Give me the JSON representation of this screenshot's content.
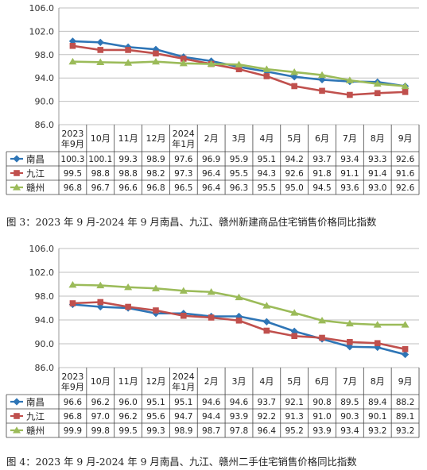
{
  "charts": [
    {
      "caption": "图 3：2023 年 9 月-2024 年 9 月南昌、九江、赣州新建商品住宅销售价格同比指数",
      "chart_data": {
        "type": "line",
        "categories": [
          [
            "2023",
            "年9月"
          ],
          [
            "10月"
          ],
          [
            "11月"
          ],
          [
            "12月"
          ],
          [
            "2024",
            "年1月"
          ],
          [
            "2月"
          ],
          [
            "3月"
          ],
          [
            "4月"
          ],
          [
            "5月"
          ],
          [
            "6月"
          ],
          [
            "7月"
          ],
          [
            "8月"
          ],
          [
            "9月"
          ]
        ],
        "ylim": [
          86.0,
          106.0
        ],
        "yticks": [
          "86.0",
          "90.0",
          "94.0",
          "98.0",
          "102.0",
          "106.0"
        ],
        "series": [
          {
            "name": "南昌",
            "color": "#2e75b6",
            "marker": "diamond",
            "values": [
              100.3,
              100.1,
              99.3,
              98.9,
              97.6,
              96.9,
              95.9,
              95.1,
              94.2,
              93.7,
              93.4,
              93.3,
              92.6
            ],
            "labels": [
              "100.3",
              "100.1",
              "99.3",
              "98.9",
              "97.6",
              "96.9",
              "95.9",
              "95.1",
              "94.2",
              "93.7",
              "93.4",
              "93.3",
              "92.6"
            ]
          },
          {
            "name": "九江",
            "color": "#c0504d",
            "marker": "square",
            "values": [
              99.5,
              98.8,
              98.8,
              98.2,
              97.3,
              96.4,
              95.5,
              94.3,
              92.6,
              91.8,
              91.1,
              91.4,
              91.6
            ],
            "labels": [
              "99.5",
              "98.8",
              "98.8",
              "98.2",
              "97.3",
              "96.4",
              "95.5",
              "94.3",
              "92.6",
              "91.8",
              "91.1",
              "91.4",
              "91.6"
            ]
          },
          {
            "name": "赣州",
            "color": "#9bbb59",
            "marker": "triangle",
            "values": [
              96.8,
              96.7,
              96.6,
              96.8,
              96.5,
              96.4,
              96.3,
              95.5,
              95.0,
              94.5,
              93.6,
              93.0,
              92.6
            ],
            "labels": [
              "96.8",
              "96.7",
              "96.6",
              "96.8",
              "96.5",
              "96.4",
              "96.3",
              "95.5",
              "95.0",
              "94.5",
              "93.6",
              "93.0",
              "92.6"
            ]
          }
        ]
      }
    },
    {
      "caption": "图 4：2023 年 9 月-2024 年 9 月南昌、九江、赣州二手住宅销售价格同比指数",
      "chart_data": {
        "type": "line",
        "categories": [
          [
            "2023",
            "年9月"
          ],
          [
            "10月"
          ],
          [
            "11月"
          ],
          [
            "12月"
          ],
          [
            "2024",
            "年1月"
          ],
          [
            "2月"
          ],
          [
            "3月"
          ],
          [
            "4月"
          ],
          [
            "5月"
          ],
          [
            "6月"
          ],
          [
            "7月"
          ],
          [
            "8月"
          ],
          [
            "9月"
          ]
        ],
        "ylim": [
          86.0,
          106.0
        ],
        "yticks": [
          "86.0",
          "90.0",
          "94.0",
          "98.0",
          "102.0",
          "106.0"
        ],
        "series": [
          {
            "name": "南昌",
            "color": "#2e75b6",
            "marker": "diamond",
            "values": [
              96.6,
              96.2,
              96.0,
              95.1,
              95.1,
              94.6,
              94.6,
              93.7,
              92.1,
              90.8,
              89.5,
              89.4,
              88.2
            ],
            "labels": [
              "96.6",
              "96.2",
              "96.0",
              "95.1",
              "95.1",
              "94.6",
              "94.6",
              "93.7",
              "92.1",
              "90.8",
              "89.5",
              "89.4",
              "88.2"
            ]
          },
          {
            "name": "九江",
            "color": "#c0504d",
            "marker": "square",
            "values": [
              96.8,
              97.0,
              96.2,
              95.6,
              94.7,
              94.4,
              93.9,
              92.2,
              91.3,
              91.0,
              90.3,
              90.1,
              89.1
            ],
            "labels": [
              "96.8",
              "97.0",
              "96.2",
              "95.6",
              "94.7",
              "94.4",
              "93.9",
              "92.2",
              "91.3",
              "91.0",
              "90.3",
              "90.1",
              "89.1"
            ]
          },
          {
            "name": "赣州",
            "color": "#9bbb59",
            "marker": "triangle",
            "values": [
              99.9,
              99.8,
              99.5,
              99.3,
              98.9,
              98.7,
              97.8,
              96.4,
              95.2,
              93.9,
              93.4,
              93.2,
              93.2
            ],
            "labels": [
              "99.9",
              "99.8",
              "99.5",
              "99.3",
              "98.9",
              "98.7",
              "97.8",
              "96.4",
              "95.2",
              "93.9",
              "93.4",
              "93.2",
              "93.2"
            ]
          }
        ]
      }
    }
  ]
}
